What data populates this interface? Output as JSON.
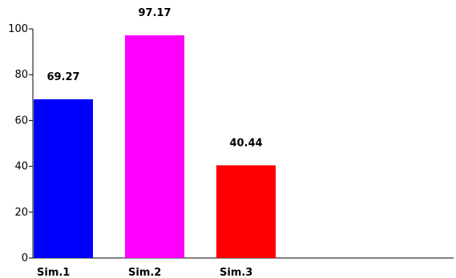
{
  "chart_data": {
    "type": "bar",
    "categories": [
      "Sim.1",
      "Sim.2",
      "Sim.3"
    ],
    "values": [
      69.27,
      97.17,
      40.44
    ],
    "value_labels": [
      "69.27",
      "97.17",
      "40.44"
    ],
    "colors": [
      "#0000ff",
      "#ff00ff",
      "#ff0000"
    ],
    "ylim": [
      0,
      100
    ],
    "yticks": [
      0,
      20,
      40,
      60,
      80,
      100
    ],
    "ytick_labels": [
      "0",
      "20",
      "40",
      "60",
      "80",
      "100"
    ],
    "grid": false,
    "legend": "none"
  }
}
